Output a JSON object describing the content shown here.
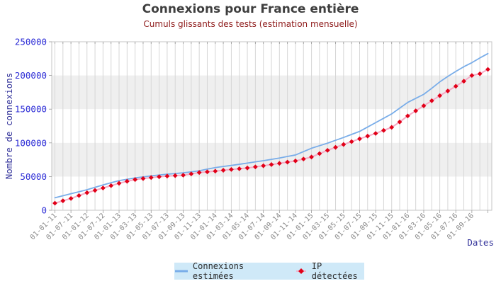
{
  "header": {
    "title": "Connexions pour France entière",
    "subtitle": "Cumuls glissants des tests (estimation mensuelle)"
  },
  "chart_data": {
    "type": "line",
    "title": "Connexions pour France entière",
    "subtitle": "Cumuls glissants des tests (estimation mensuelle)",
    "xlabel": "Dates",
    "ylabel": "Nombre de connexions",
    "ylim": [
      0,
      250000
    ],
    "yticks": [
      0,
      50000,
      100000,
      150000,
      200000,
      250000
    ],
    "n_points": 55,
    "points_per_label": 2,
    "x_tick_labels": [
      "01-01-11",
      "01-07-11",
      "01-01-12",
      "01-07-12",
      "01-01-13",
      "01-03-13",
      "01-05-13",
      "01-07-13",
      "01-09-13",
      "01-11-13",
      "01-01-14",
      "01-03-14",
      "01-05-14",
      "01-07-14",
      "01-09-14",
      "01-11-14",
      "01-01-15",
      "01-03-15",
      "01-05-15",
      "01-07-15",
      "01-09-15",
      "01-11-15",
      "01-01-16",
      "01-03-16",
      "01-05-16",
      "01-07-16",
      "01-09-16"
    ],
    "grid": {
      "vertical_gridlines": true,
      "alternating_horizontal_bands": true
    },
    "legend_position": "bottom-center",
    "series": [
      {
        "name": "Connexions estimées",
        "color": "#79ade9",
        "marker": "none",
        "values": [
          18500,
          21500,
          24500,
          27500,
          30500,
          34000,
          37500,
          40800,
          44000,
          46000,
          48000,
          49500,
          51000,
          52300,
          53500,
          54500,
          55500,
          57000,
          58500,
          61000,
          63300,
          65000,
          66500,
          68200,
          70000,
          71800,
          73500,
          75500,
          77500,
          79800,
          82000,
          87000,
          92000,
          95800,
          99500,
          103800,
          108000,
          112500,
          117000,
          123500,
          130000,
          136500,
          143000,
          151500,
          160000,
          166000,
          172000,
          181000,
          190500,
          198500,
          206000,
          213000,
          219000,
          226000,
          232500
        ]
      },
      {
        "name": "IP détectées",
        "color": "#f5aac5",
        "marker": "diamond",
        "marker_color": "#e10018",
        "values": [
          10500,
          14000,
          17500,
          21800,
          26000,
          29500,
          33000,
          36500,
          40000,
          43000,
          45500,
          47000,
          48500,
          49700,
          50700,
          51400,
          52000,
          54000,
          56000,
          57000,
          58000,
          59300,
          60500,
          61600,
          62700,
          64300,
          66000,
          67800,
          69600,
          71400,
          73200,
          76000,
          79000,
          84000,
          88900,
          93300,
          97600,
          101800,
          106000,
          110000,
          114000,
          118500,
          123000,
          131000,
          140000,
          147500,
          155000,
          162500,
          170000,
          177000,
          184000,
          191500,
          200000,
          202500,
          209000
        ]
      }
    ]
  },
  "colors": {
    "background": "#ffffff",
    "title": "#3f3f3f",
    "subtitle": "#8e1a1a",
    "y_tick_labels": "#2d2dd6",
    "x_tick_labels": "#8a8a8a",
    "axis_titles": "#32329a",
    "gridline": "#d6d6d6",
    "band_fill": "#efefef",
    "plot_border": "#c4c4c4",
    "tick_mark": "#999999",
    "legend_background": "#cfe9f8",
    "legend_text": "#2b2b2b"
  }
}
